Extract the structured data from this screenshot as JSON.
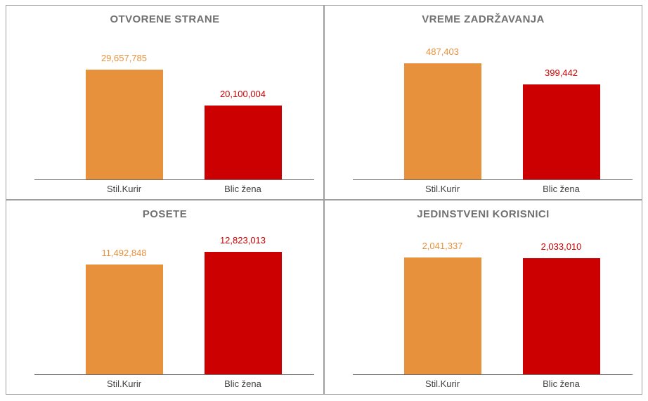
{
  "page": {
    "background": "#ffffff",
    "panel_border_color": "#9e9e9e",
    "title_color": "#717171",
    "category_label_color": "#424242",
    "axis_line_color": "#6d6d6d"
  },
  "chart_data": [
    {
      "type": "bar",
      "title": "OTVORENE STRANE",
      "categories": [
        "Stil.Kurir",
        "Blic žena"
      ],
      "series": [
        {
          "name": "Stil.Kurir",
          "value": 29657785,
          "label": "29,657,785",
          "color": "#E8913C"
        },
        {
          "name": "Blic žena",
          "value": 20100004,
          "label": "20,100,004",
          "color": "#CC0000"
        }
      ],
      "ylim": [
        0,
        40000000
      ],
      "legend": "none",
      "grid": false,
      "value_labels": "above-bars"
    },
    {
      "type": "bar",
      "title": "VREME ZADRŽAVANJA",
      "categories": [
        "Stil.Kurir",
        "Blic žena"
      ],
      "series": [
        {
          "name": "Stil.Kurir",
          "value": 487403,
          "label": "487,403",
          "color": "#E8913C"
        },
        {
          "name": "Blic žena",
          "value": 399442,
          "label": "399,442",
          "color": "#CC0000"
        }
      ],
      "ylim": [
        0,
        620000
      ],
      "legend": "none",
      "grid": false,
      "value_labels": "above-bars"
    },
    {
      "type": "bar",
      "title": "POSETE",
      "categories": [
        "Stil.Kurir",
        "Blic žena"
      ],
      "series": [
        {
          "name": "Stil.Kurir",
          "value": 11492848,
          "label": "11,492,848",
          "color": "#E8913C"
        },
        {
          "name": "Blic žena",
          "value": 12823013,
          "label": "12,823,013",
          "color": "#CC0000"
        }
      ],
      "ylim": [
        0,
        15500000
      ],
      "legend": "none",
      "grid": false,
      "value_labels": "above-bars"
    },
    {
      "type": "bar",
      "title": "JEDINSTVENI KORISNICI",
      "categories": [
        "Stil.Kurir",
        "Blic žena"
      ],
      "series": [
        {
          "name": "Stil.Kurir",
          "value": 2041337,
          "label": "2,041,337",
          "color": "#E8913C"
        },
        {
          "name": "Blic žena",
          "value": 2033010,
          "label": "2,033,010",
          "color": "#CC0000"
        }
      ],
      "ylim": [
        0,
        2580000
      ],
      "legend": "none",
      "grid": false,
      "value_labels": "above-bars"
    }
  ]
}
